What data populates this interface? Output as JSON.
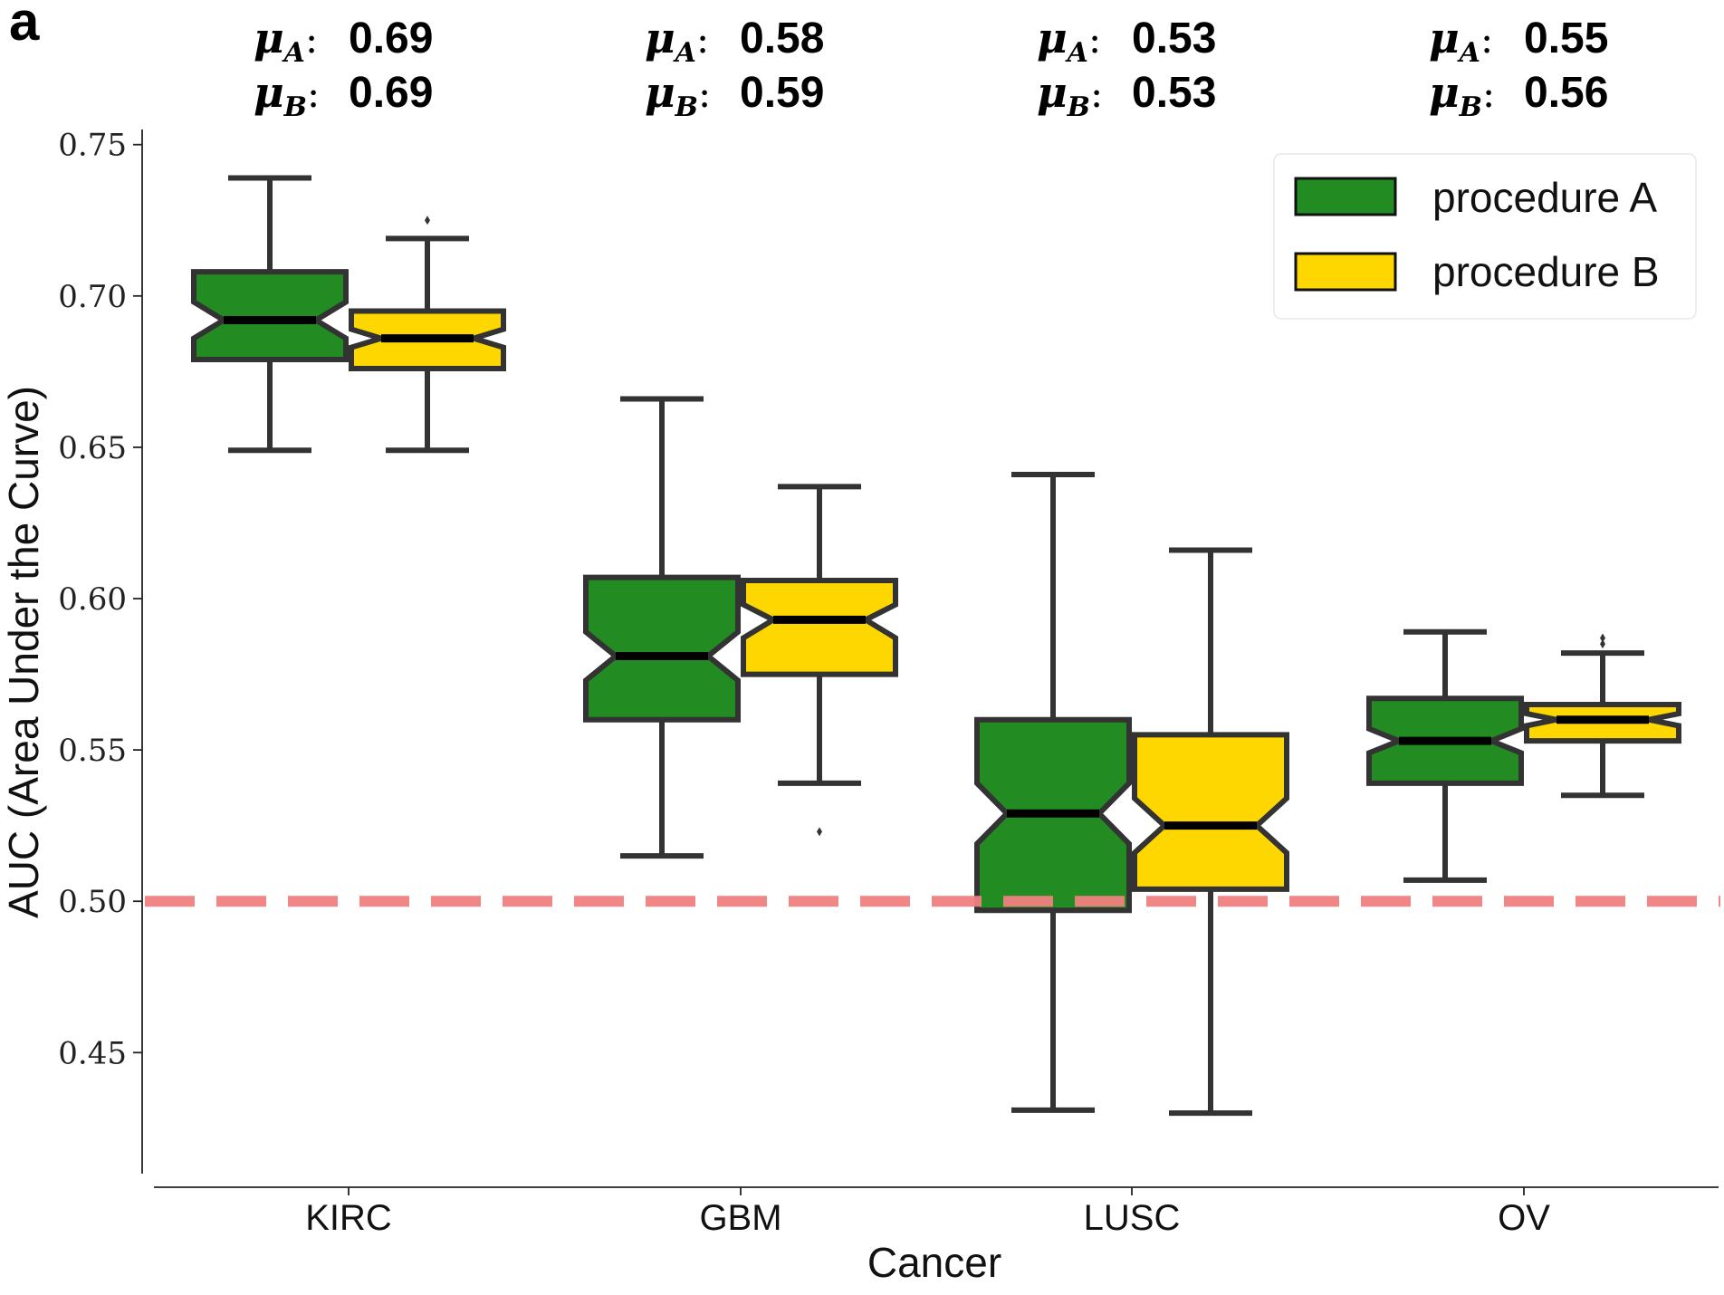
{
  "panel_label": "a",
  "colors": {
    "procedure_a": "#228B22",
    "procedure_b": "#FFD700",
    "box_edge": "#333333",
    "median": "#000000",
    "reference_line": "#F08080"
  },
  "mean_labels": [
    {
      "category": "KIRC",
      "mu_a": "0.69",
      "mu_b": "0.69"
    },
    {
      "category": "GBM",
      "mu_a": "0.58",
      "mu_b": "0.59"
    },
    {
      "category": "LUSC",
      "mu_a": "0.53",
      "mu_b": "0.53"
    },
    {
      "category": "OV",
      "mu_a": "0.55",
      "mu_b": "0.56"
    }
  ],
  "chart_data": {
    "type": "boxplot",
    "notched": true,
    "xlabel": "Cancer",
    "ylabel": "AUC (Area Under the Curve)",
    "categories": [
      "KIRC",
      "GBM",
      "LUSC",
      "OV"
    ],
    "ylim": [
      0.41,
      0.755
    ],
    "yticks": [
      0.45,
      0.5,
      0.55,
      0.6,
      0.65,
      0.7,
      0.75
    ],
    "ytick_labels": [
      "0.45",
      "0.50",
      "0.55",
      "0.60",
      "0.65",
      "0.70",
      "0.75"
    ],
    "grid": false,
    "legend_position": "top-right",
    "reference_line": {
      "y": 0.5,
      "style": "dashed"
    },
    "series": [
      {
        "name": "procedure A",
        "boxes": [
          {
            "whisker_low": 0.649,
            "q1": 0.679,
            "notch_low": 0.686,
            "median": 0.692,
            "notch_high": 0.698,
            "q3": 0.708,
            "whisker_high": 0.739,
            "outliers": []
          },
          {
            "whisker_low": 0.515,
            "q1": 0.56,
            "notch_low": 0.573,
            "median": 0.581,
            "notch_high": 0.589,
            "q3": 0.607,
            "whisker_high": 0.666,
            "outliers": []
          },
          {
            "whisker_low": 0.431,
            "q1": 0.497,
            "notch_low": 0.519,
            "median": 0.529,
            "notch_high": 0.539,
            "q3": 0.56,
            "whisker_high": 0.641,
            "outliers": []
          },
          {
            "whisker_low": 0.507,
            "q1": 0.539,
            "notch_low": 0.549,
            "median": 0.553,
            "notch_high": 0.557,
            "q3": 0.567,
            "whisker_high": 0.589,
            "outliers": []
          }
        ]
      },
      {
        "name": "procedure B",
        "boxes": [
          {
            "whisker_low": 0.649,
            "q1": 0.676,
            "notch_low": 0.683,
            "median": 0.686,
            "notch_high": 0.689,
            "q3": 0.695,
            "whisker_high": 0.719,
            "outliers": [
              0.725
            ]
          },
          {
            "whisker_low": 0.539,
            "q1": 0.575,
            "notch_low": 0.587,
            "median": 0.593,
            "notch_high": 0.598,
            "q3": 0.606,
            "whisker_high": 0.637,
            "outliers": [
              0.523
            ]
          },
          {
            "whisker_low": 0.43,
            "q1": 0.504,
            "notch_low": 0.516,
            "median": 0.525,
            "notch_high": 0.534,
            "q3": 0.555,
            "whisker_high": 0.616,
            "outliers": []
          },
          {
            "whisker_low": 0.535,
            "q1": 0.553,
            "notch_low": 0.558,
            "median": 0.56,
            "notch_high": 0.562,
            "q3": 0.565,
            "whisker_high": 0.582,
            "outliers": [
              0.585,
              0.587
            ]
          }
        ]
      }
    ]
  }
}
